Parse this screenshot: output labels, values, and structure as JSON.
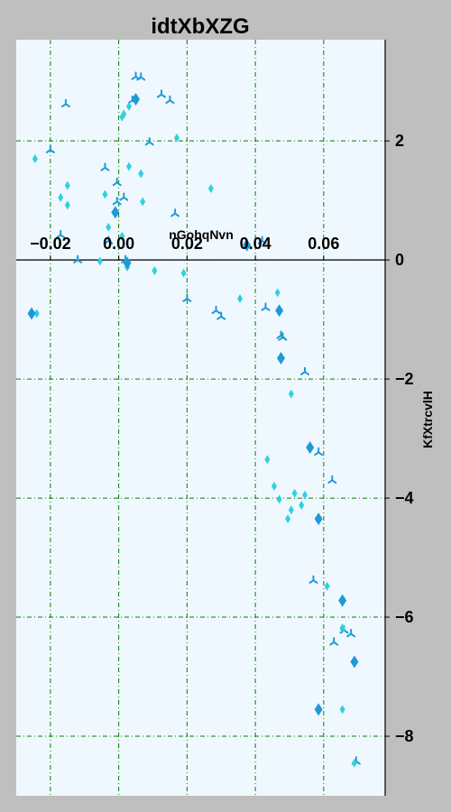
{
  "chart_data": {
    "type": "scatter",
    "title": "idtXbXZG",
    "xlabel": "nGohqNvn",
    "ylabel": "KfXtrcvlH",
    "xlim": [
      -0.03,
      0.078
    ],
    "ylim": [
      -9.0,
      3.7
    ],
    "xticks": [
      -0.02,
      0.0,
      0.02,
      0.04,
      0.06
    ],
    "xtick_labels": [
      "−0.02",
      "0.00",
      "0.02",
      "0.04",
      "0.06"
    ],
    "yticks": [
      2,
      0,
      -2,
      -4,
      -6,
      -8
    ],
    "ytick_labels": [
      "2",
      "0",
      "−2",
      "−4",
      "−6",
      "−8"
    ],
    "grid": true,
    "colors": {
      "plot_background": "#f0f8ff",
      "page_background": "#bfbfbf",
      "grid": "#008000",
      "series_a": "#1e9ad6",
      "series_b": "#2ed1e0"
    },
    "series": [
      {
        "marker": "tri-down",
        "color": "#1e9ad6",
        "points": [
          [
            -0.0155,
            2.62
          ],
          [
            -0.004,
            1.55
          ],
          [
            -0.0005,
            1.3
          ],
          [
            0.0015,
            1.05
          ],
          [
            0.005,
            3.08
          ],
          [
            0.0065,
            3.07
          ],
          [
            0.0125,
            2.78
          ],
          [
            0.015,
            2.68
          ],
          [
            0.004,
            2.68
          ],
          [
            0.0165,
            0.78
          ],
          [
            0.009,
            1.98
          ],
          [
            -0.017,
            0.42
          ],
          [
            -0.012,
            0.0
          ],
          [
            -0.003,
            0.32
          ],
          [
            0.002,
            0.0
          ],
          [
            0.02,
            -0.65
          ],
          [
            0.0285,
            -0.85
          ],
          [
            0.03,
            -0.95
          ],
          [
            0.042,
            0.32
          ],
          [
            0.043,
            -0.8
          ],
          [
            0.0475,
            -1.27
          ],
          [
            0.048,
            -1.3
          ],
          [
            0.0545,
            -1.88
          ],
          [
            0.057,
            -5.38
          ],
          [
            0.0585,
            -3.23
          ],
          [
            0.0625,
            -3.7
          ],
          [
            0.066,
            -6.22
          ],
          [
            0.068,
            -6.28
          ],
          [
            0.063,
            -6.42
          ],
          [
            0.0695,
            -8.42
          ],
          [
            -0.02,
            1.85
          ],
          [
            -0.0005,
            0.98
          ]
        ]
      },
      {
        "marker": "thin-diamond",
        "color": "#2ed1e0",
        "points": [
          [
            -0.0245,
            1.7
          ],
          [
            -0.017,
            1.05
          ],
          [
            -0.015,
            1.25
          ],
          [
            -0.015,
            0.92
          ],
          [
            -0.004,
            1.1
          ],
          [
            -0.003,
            0.55
          ],
          [
            0.001,
            2.4
          ],
          [
            0.0015,
            2.45
          ],
          [
            0.003,
            2.58
          ],
          [
            0.003,
            1.57
          ],
          [
            0.0065,
            1.45
          ],
          [
            0.007,
            0.98
          ],
          [
            0.017,
            2.05
          ],
          [
            0.027,
            1.2
          ],
          [
            0.001,
            0.4
          ],
          [
            -0.0055,
            -0.02
          ],
          [
            0.0025,
            -0.12
          ],
          [
            0.0105,
            -0.18
          ],
          [
            0.019,
            -0.22
          ],
          [
            0.0355,
            -0.65
          ],
          [
            -0.024,
            -0.9
          ],
          [
            0.0465,
            -0.55
          ],
          [
            0.0505,
            -2.25
          ],
          [
            0.0435,
            -3.35
          ],
          [
            0.0455,
            -3.8
          ],
          [
            0.047,
            -4.02
          ],
          [
            0.0495,
            -4.35
          ],
          [
            0.0505,
            -4.2
          ],
          [
            0.0515,
            -3.92
          ],
          [
            0.0535,
            -4.12
          ],
          [
            0.0545,
            -3.95
          ],
          [
            0.0585,
            -4.35
          ],
          [
            0.061,
            -5.48
          ],
          [
            0.0655,
            -5.75
          ],
          [
            0.0655,
            -6.18
          ],
          [
            0.0655,
            -6.2
          ],
          [
            0.069,
            -6.75
          ],
          [
            0.0655,
            -7.55
          ],
          [
            0.069,
            -8.45
          ]
        ]
      },
      {
        "marker": "diamond",
        "color": "#1e9ad6",
        "points": [
          [
            -0.0255,
            -0.9
          ],
          [
            -0.001,
            0.8
          ],
          [
            0.005,
            2.7
          ],
          [
            0.0375,
            0.25
          ],
          [
            0.047,
            -0.85
          ],
          [
            0.0475,
            -1.65
          ],
          [
            0.056,
            -3.15
          ],
          [
            0.0585,
            -4.35
          ],
          [
            0.0655,
            -5.72
          ],
          [
            0.069,
            -6.75
          ],
          [
            0.0585,
            -7.55
          ],
          [
            0.0025,
            -0.05
          ]
        ]
      }
    ]
  }
}
